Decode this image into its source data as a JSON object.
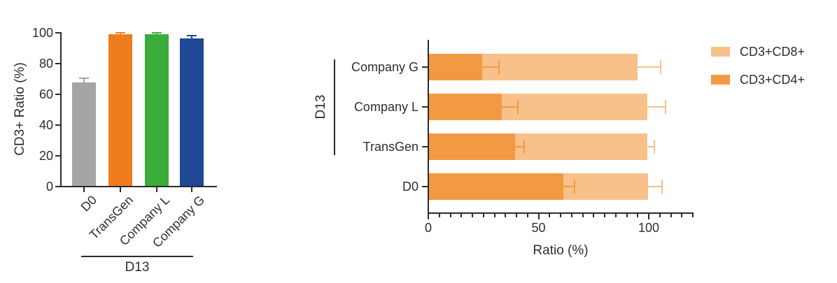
{
  "chart_data": [
    {
      "type": "bar",
      "title": "",
      "ylabel": "CD3+ Ratio (%)",
      "categories": [
        "D0",
        "TransGen",
        "Company L",
        "Company G"
      ],
      "values": [
        67.5,
        98.5,
        98.5,
        96
      ],
      "errors": [
        3,
        1.5,
        1.5,
        2
      ],
      "bar_colors": [
        "#A5A5A8",
        "#EF7D1E",
        "#3AAC3A",
        "#1E4796"
      ],
      "yticks": [
        0,
        20,
        40,
        60,
        80,
        100
      ],
      "ylim": [
        0,
        100
      ],
      "grid": false,
      "group_label": "D13",
      "group_covers": [
        "TransGen",
        "Company L",
        "Company G"
      ]
    },
    {
      "type": "stacked-bar-horizontal",
      "title": "",
      "xlabel": "Ratio (%)",
      "categories": [
        "Company G",
        "Company L",
        "TransGen",
        "D0"
      ],
      "series": [
        {
          "name": "CD3+CD4+",
          "color": "#F19A43",
          "values": [
            24,
            33,
            39,
            61
          ],
          "errors": [
            8,
            7.5,
            4.5,
            5.5
          ]
        },
        {
          "name": "CD3+CD8+",
          "color": "#F8C189",
          "values": [
            70.5,
            66,
            60,
            38.5
          ],
          "errors": [
            11,
            8.5,
            3.5,
            6.5
          ]
        }
      ],
      "xticks": [
        0,
        50,
        100
      ],
      "xlim": [
        0,
        120
      ],
      "minor_tick_step": 5,
      "grid": false,
      "group_label": "D13",
      "group_covers": [
        "Company G",
        "Company L",
        "TransGen"
      ],
      "legend": [
        "CD3+CD8+",
        "CD3+CD4+"
      ],
      "legend_position": "right"
    }
  ],
  "axis_color": "#2b2b2b",
  "text_color": "#2e2e2e"
}
